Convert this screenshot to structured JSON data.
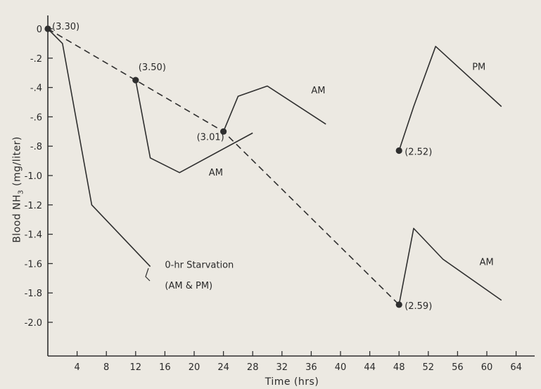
{
  "chart_data": {
    "type": "line",
    "xlabel": "Time (hrs)",
    "ylabel": "Blood NH3 (mg/liter)",
    "xlim": [
      0,
      66
    ],
    "ylim": [
      -2.2,
      0.1
    ],
    "xticks": [
      4,
      8,
      12,
      16,
      20,
      24,
      28,
      32,
      36,
      40,
      44,
      48,
      52,
      56,
      60,
      64
    ],
    "yticks": [
      {
        "value": 0,
        "label": "0"
      },
      {
        "value": -0.2,
        "label": "-.2"
      },
      {
        "value": -0.4,
        "label": "-.4"
      },
      {
        "value": -0.6,
        "label": "-.6"
      },
      {
        "value": -0.8,
        "label": "-.8"
      },
      {
        "value": -1.0,
        "label": "-1.0"
      },
      {
        "value": -1.2,
        "label": "-1.2"
      },
      {
        "value": -1.4,
        "label": "-1.4"
      },
      {
        "value": -1.6,
        "label": "-1.6"
      },
      {
        "value": -1.8,
        "label": "-1.8"
      },
      {
        "value": -2.0,
        "label": "-2.0"
      }
    ],
    "grid": false,
    "legend": "none",
    "series": [
      {
        "style": "dashed",
        "x": [
          0,
          12,
          24,
          48
        ],
        "y": [
          0,
          -0.35,
          -0.7,
          -1.88
        ]
      },
      {
        "style": "solid",
        "x": [
          0,
          2,
          6,
          14
        ],
        "y": [
          0,
          -0.1,
          -1.2,
          -1.62
        ]
      },
      {
        "style": "solid",
        "x": [
          12,
          14,
          18,
          28
        ],
        "y": [
          -0.35,
          -0.88,
          -0.98,
          -0.71
        ]
      },
      {
        "style": "solid",
        "x": [
          24,
          26,
          30,
          38
        ],
        "y": [
          -0.7,
          -0.46,
          -0.39,
          -0.65
        ]
      },
      {
        "style": "solid",
        "x": [
          48,
          50,
          53,
          62
        ],
        "y": [
          -0.83,
          -0.53,
          -0.12,
          -0.53
        ]
      },
      {
        "style": "solid",
        "x": [
          48,
          50,
          54,
          62
        ],
        "y": [
          -1.88,
          -1.36,
          -1.57,
          -1.85
        ]
      }
    ],
    "points": [
      {
        "x": 0,
        "y": 0,
        "label": "(3.30)"
      },
      {
        "x": 12,
        "y": -0.35,
        "label": "(3.50)"
      },
      {
        "x": 24,
        "y": -0.7,
        "label": "(3.01)"
      },
      {
        "x": 48,
        "y": -0.83,
        "label": "(2.52)"
      },
      {
        "x": 48,
        "y": -1.88,
        "label": "(2.59)"
      }
    ],
    "annotations": [
      {
        "text": "AM",
        "x": 36,
        "y": -0.44
      },
      {
        "text": "AM",
        "x": 22,
        "y": -1.0
      },
      {
        "text": "PM",
        "x": 58,
        "y": -0.28
      },
      {
        "text": "AM",
        "x": 59,
        "y": -1.61
      },
      {
        "text": "0-hr Starvation",
        "x": 16,
        "y": -1.63
      },
      {
        "text": "(AM & PM)",
        "x": 16,
        "y": -1.77
      }
    ]
  }
}
